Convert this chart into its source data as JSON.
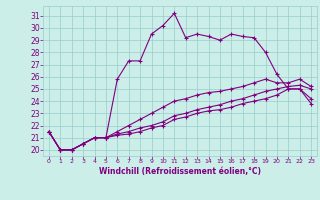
{
  "xlabel": "Windchill (Refroidissement éolien,°C)",
  "hours": [
    0,
    1,
    2,
    3,
    4,
    5,
    6,
    7,
    8,
    9,
    10,
    11,
    12,
    13,
    14,
    15,
    16,
    17,
    18,
    19,
    20,
    21,
    22,
    23
  ],
  "temp": [
    21.5,
    20.0,
    20.0,
    20.5,
    21.0,
    21.0,
    25.8,
    27.3,
    27.3,
    29.5,
    30.2,
    31.2,
    29.2,
    29.5,
    29.3,
    29.0,
    29.5,
    29.3,
    29.2,
    28.0,
    26.2,
    25.0,
    25.0,
    24.2
  ],
  "windchill_high": [
    21.5,
    20.0,
    20.0,
    20.5,
    21.0,
    21.0,
    21.5,
    22.0,
    22.5,
    23.0,
    23.5,
    24.0,
    24.2,
    24.5,
    24.7,
    24.8,
    25.0,
    25.2,
    25.5,
    25.8,
    25.5,
    25.5,
    25.8,
    25.2
  ],
  "windchill_mid": [
    21.5,
    20.0,
    20.0,
    20.5,
    21.0,
    21.0,
    21.3,
    21.5,
    21.8,
    22.0,
    22.3,
    22.8,
    23.0,
    23.3,
    23.5,
    23.7,
    24.0,
    24.2,
    24.5,
    24.8,
    25.0,
    25.2,
    25.3,
    25.0
  ],
  "windchill_low": [
    21.5,
    20.0,
    20.0,
    20.5,
    21.0,
    21.0,
    21.2,
    21.3,
    21.5,
    21.8,
    22.0,
    22.5,
    22.7,
    23.0,
    23.2,
    23.3,
    23.5,
    23.8,
    24.0,
    24.2,
    24.5,
    25.0,
    25.0,
    23.8
  ],
  "color": "#800080",
  "bg_color": "#cceee8",
  "grid_color": "#99cccc",
  "ylim": [
    19.5,
    31.8
  ],
  "yticks": [
    20,
    21,
    22,
    23,
    24,
    25,
    26,
    27,
    28,
    29,
    30,
    31
  ],
  "xticks": [
    0,
    1,
    2,
    3,
    4,
    5,
    6,
    7,
    8,
    9,
    10,
    11,
    12,
    13,
    14,
    15,
    16,
    17,
    18,
    19,
    20,
    21,
    22,
    23
  ],
  "linewidth": 0.8,
  "markersize": 2.5
}
